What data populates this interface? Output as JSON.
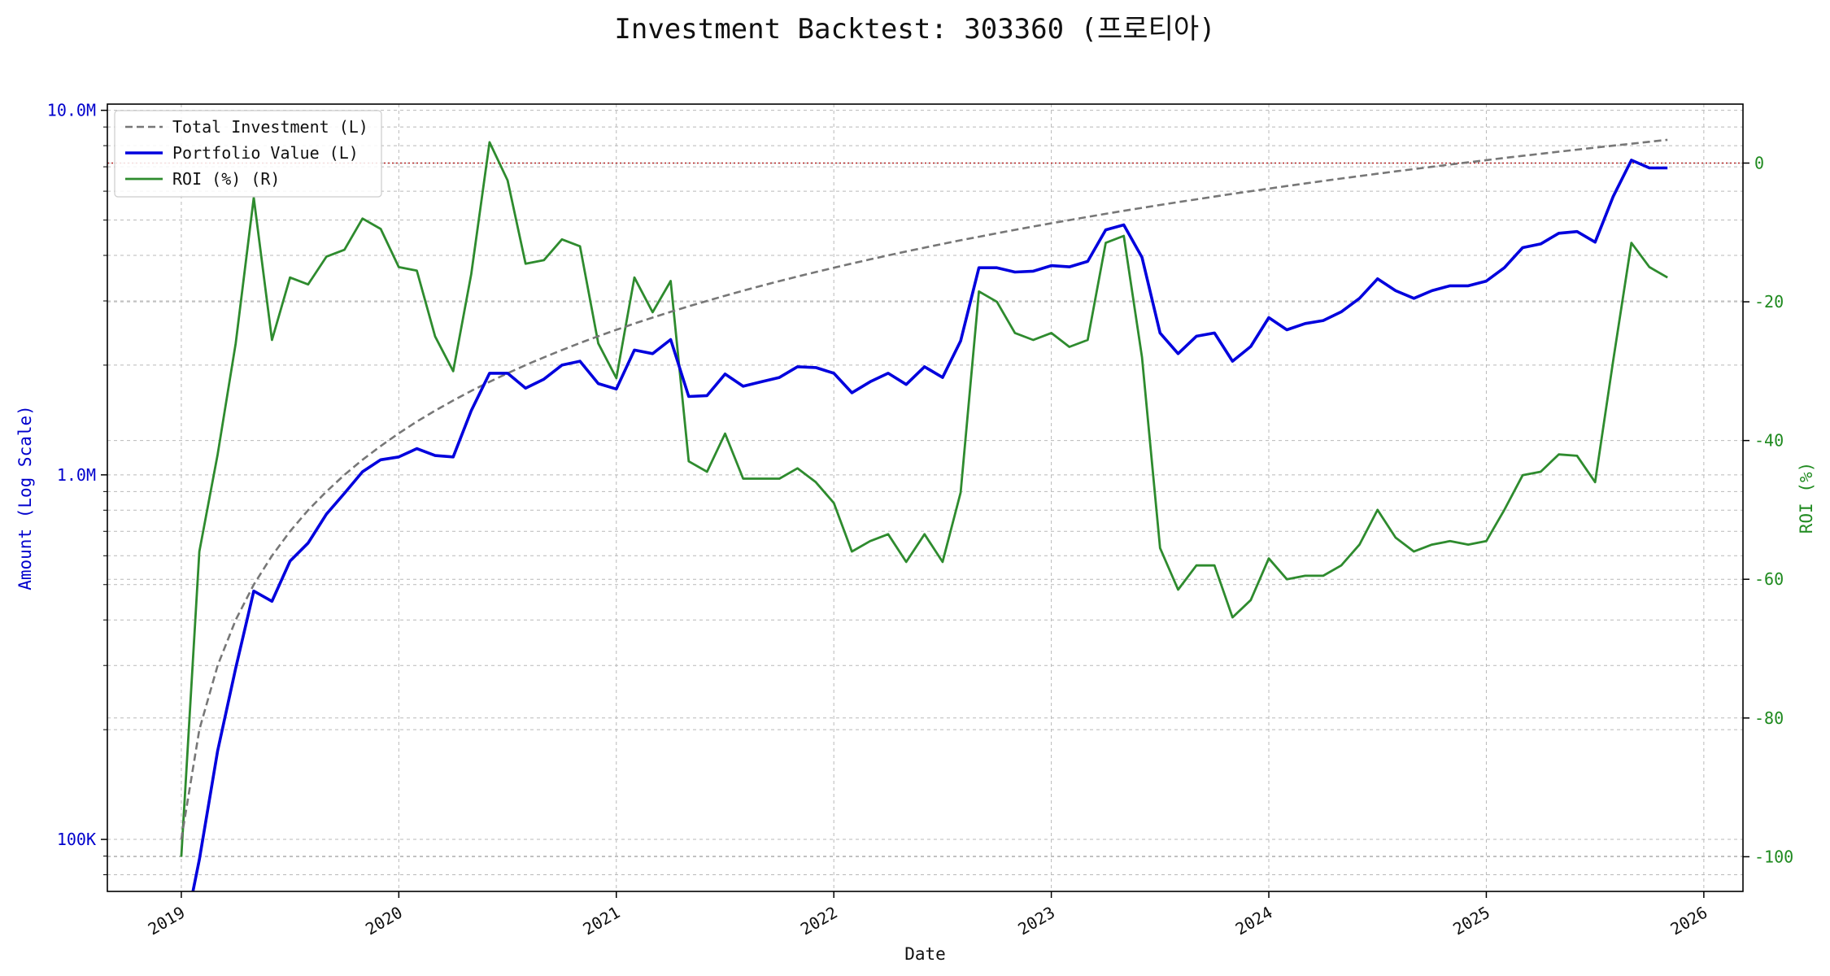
{
  "chart_data": {
    "type": "line",
    "title": "Investment Backtest: 303360 (프로티아)",
    "xlabel": "Date",
    "ylabel_left": "Amount (Log Scale)",
    "ylabel_right": "ROI (%)",
    "y_left_scale": "log",
    "y_left_range": [
      72000,
      10400000
    ],
    "y_left_ticks": [
      {
        "value": 100000,
        "label": "100K"
      },
      {
        "value": 1000000,
        "label": "1.0M"
      },
      {
        "value": 10000000,
        "label": "10.0M"
      }
    ],
    "y_right_range": [
      -105,
      8.5
    ],
    "y_right_ticks": [
      {
        "value": 0,
        "label": "0"
      },
      {
        "value": -20,
        "label": "-20"
      },
      {
        "value": -40,
        "label": "-40"
      },
      {
        "value": -60,
        "label": "-60"
      },
      {
        "value": -80,
        "label": "-80"
      },
      {
        "value": -100,
        "label": "-100"
      }
    ],
    "x_range": [
      2018.66,
      2026.18
    ],
    "x_ticks": [
      {
        "value": 2019,
        "label": "2019"
      },
      {
        "value": 2020,
        "label": "2020"
      },
      {
        "value": 2021,
        "label": "2021"
      },
      {
        "value": 2022,
        "label": "2022"
      },
      {
        "value": 2023,
        "label": "2023"
      },
      {
        "value": 2024,
        "label": "2024"
      },
      {
        "value": 2025,
        "label": "2025"
      },
      {
        "value": 2026,
        "label": "2026"
      }
    ],
    "grid": true,
    "legend_position": "top-left",
    "reference_line": {
      "axis": "right",
      "value": 0,
      "color": "#b22222"
    },
    "x": [
      2019.0,
      2019.083,
      2019.167,
      2019.25,
      2019.333,
      2019.417,
      2019.5,
      2019.583,
      2019.667,
      2019.75,
      2019.833,
      2019.917,
      2020.0,
      2020.083,
      2020.167,
      2020.25,
      2020.333,
      2020.417,
      2020.5,
      2020.583,
      2020.667,
      2020.75,
      2020.833,
      2020.917,
      2021.0,
      2021.083,
      2021.167,
      2021.25,
      2021.333,
      2021.417,
      2021.5,
      2021.583,
      2021.667,
      2021.75,
      2021.833,
      2021.917,
      2022.0,
      2022.083,
      2022.167,
      2022.25,
      2022.333,
      2022.417,
      2022.5,
      2022.583,
      2022.667,
      2022.75,
      2022.833,
      2022.917,
      2023.0,
      2023.083,
      2023.167,
      2023.25,
      2023.333,
      2023.417,
      2023.5,
      2023.583,
      2023.667,
      2023.75,
      2023.833,
      2023.917,
      2024.0,
      2024.083,
      2024.167,
      2024.25,
      2024.333,
      2024.417,
      2024.5,
      2024.583,
      2024.667,
      2024.75,
      2024.833,
      2024.917,
      2025.0,
      2025.083,
      2025.167,
      2025.25,
      2025.333,
      2025.417,
      2025.5,
      2025.583,
      2025.667,
      2025.75,
      2025.833
    ],
    "series": [
      {
        "name": "Total Investment (L)",
        "axis": "left",
        "color": "#777777",
        "style": "dashed",
        "values": [
          100000,
          200000,
          300000,
          400000,
          500000,
          600000,
          700000,
          800000,
          900000,
          1000000,
          1100000,
          1200000,
          1300000,
          1400000,
          1500000,
          1600000,
          1700000,
          1800000,
          1900000,
          2000000,
          2100000,
          2200000,
          2300000,
          2400000,
          2500000,
          2600000,
          2700000,
          2800000,
          2900000,
          3000000,
          3100000,
          3200000,
          3300000,
          3400000,
          3500000,
          3600000,
          3700000,
          3800000,
          3900000,
          4000000,
          4100000,
          4200000,
          4300000,
          4400000,
          4500000,
          4600000,
          4700000,
          4800000,
          4900000,
          5000000,
          5100000,
          5200000,
          5300000,
          5400000,
          5500000,
          5600000,
          5700000,
          5800000,
          5900000,
          6000000,
          6100000,
          6200000,
          6300000,
          6400000,
          6500000,
          6600000,
          6700000,
          6800000,
          6900000,
          7000000,
          7100000,
          7200000,
          7300000,
          7400000,
          7500000,
          7600000,
          7700000,
          7800000,
          7900000,
          8000000,
          8100000,
          8200000,
          8300000
        ]
      },
      {
        "name": "Portfolio Value (L)",
        "axis": "left",
        "color": "#0000dd",
        "style": "solid",
        "values": [
          50000,
          88000,
          175000,
          295000,
          480000,
          450000,
          580000,
          650000,
          780000,
          890000,
          1020000,
          1100000,
          1120000,
          1180000,
          1130000,
          1120000,
          1500000,
          1900000,
          1900000,
          1730000,
          1830000,
          2000000,
          2050000,
          1780000,
          1720000,
          2200000,
          2150000,
          2350000,
          1640000,
          1650000,
          1890000,
          1750000,
          1800000,
          1850000,
          1980000,
          1970000,
          1900000,
          1680000,
          1800000,
          1900000,
          1770000,
          1980000,
          1850000,
          2330000,
          3700000,
          3700000,
          3600000,
          3620000,
          3750000,
          3720000,
          3850000,
          4700000,
          4850000,
          3950000,
          2450000,
          2150000,
          2400000,
          2450000,
          2050000,
          2250000,
          2700000,
          2500000,
          2600000,
          2650000,
          2800000,
          3050000,
          3450000,
          3200000,
          3050000,
          3200000,
          3300000,
          3300000,
          3400000,
          3700000,
          4200000,
          4300000,
          4600000,
          4650000,
          4350000,
          5800000,
          7300000,
          6950000,
          6950000
        ]
      },
      {
        "name": "ROI (%) (R)",
        "axis": "right",
        "color": "#2e8b2e",
        "style": "solid",
        "values": [
          -100,
          -56,
          -42,
          -26,
          -5,
          -25.5,
          -16.5,
          -17.5,
          -13.5,
          -12.5,
          -8,
          -9.5,
          -15,
          -15.5,
          -25,
          -30,
          -16,
          3,
          -2.5,
          -14.5,
          -14,
          -11,
          -12,
          -26,
          -31,
          -16.5,
          -21.5,
          -17,
          -43,
          -44.5,
          -39,
          -45.5,
          -45.5,
          -45.5,
          -44,
          -46,
          -49,
          -56,
          -54.5,
          -53.5,
          -57.5,
          -53.5,
          -57.5,
          -47.5,
          -18.5,
          -20,
          -24.5,
          -25.5,
          -24.5,
          -26.5,
          -25.5,
          -11.5,
          -10.5,
          -28,
          -55.5,
          -61.5,
          -58,
          -58,
          -65.5,
          -63,
          -57,
          -60,
          -59.5,
          -59.5,
          -58,
          -55,
          -50,
          -54,
          -56,
          -55,
          -54.5,
          -55,
          -54.5,
          -50,
          -45,
          -44.5,
          -42,
          -42.2,
          -46,
          -28.5,
          -11.5,
          -15,
          -16.5
        ]
      }
    ]
  }
}
